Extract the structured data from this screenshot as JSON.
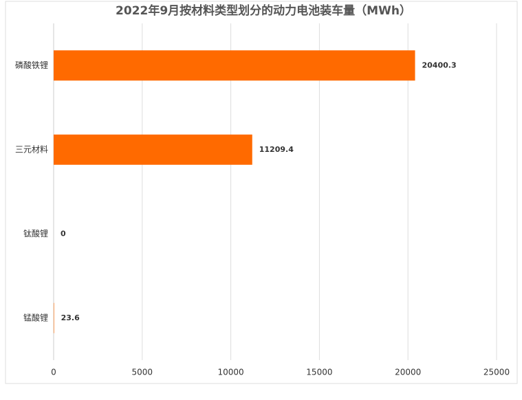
{
  "chart_data": {
    "type": "hbar",
    "title": "2022年9月按材料类型划分的动力电池装车量（MWh）",
    "categories": [
      "磷酸铁锂",
      "三元材料",
      "钛酸锂",
      "锰酸锂"
    ],
    "values": [
      20400.3,
      11209.4,
      0,
      23.6
    ],
    "color": "#ff6a00",
    "xlim": [
      0,
      25000
    ],
    "xticks": [
      0,
      5000,
      10000,
      15000,
      20000,
      25000
    ],
    "grid": true
  }
}
